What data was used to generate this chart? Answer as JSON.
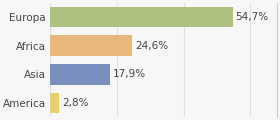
{
  "categories": [
    "Europa",
    "Africa",
    "Asia",
    "America"
  ],
  "values": [
    54.7,
    24.6,
    17.9,
    2.8
  ],
  "labels": [
    "54,7%",
    "24,6%",
    "17,9%",
    "2,8%"
  ],
  "bar_colors": [
    "#aec180",
    "#e8b87a",
    "#7b8fbf",
    "#e8d070"
  ],
  "background_color": "#f7f7f7",
  "plot_bg": "#ffffff",
  "xlim": [
    0,
    68
  ],
  "bar_height": 0.72,
  "label_fontsize": 7.5,
  "category_fontsize": 7.5,
  "text_color": "#444444",
  "grid_color": "#e0e0e0",
  "border_color": "#cccccc"
}
